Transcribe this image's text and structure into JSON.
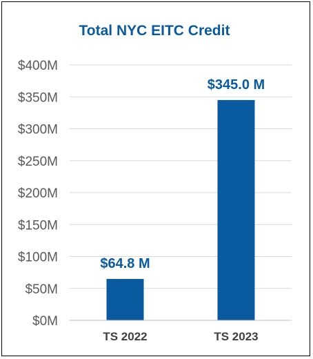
{
  "chart_data": {
    "type": "bar",
    "title": "Total NYC EITC Credit",
    "categories": [
      "TS 2022",
      "TS 2023"
    ],
    "values": [
      64.8,
      345.0
    ],
    "data_labels": [
      "$64.8 M",
      "$345.0 M"
    ],
    "y_tick_labels": [
      "$0M",
      "$50M",
      "$100M",
      "$150M",
      "$200M",
      "$250M",
      "$300M",
      "$350M",
      "$400M"
    ],
    "y_ticks": [
      0,
      50,
      100,
      150,
      200,
      250,
      300,
      350,
      400
    ],
    "ylim": [
      0,
      400
    ],
    "y_unit": "millions USD",
    "grid": true,
    "legend": "none",
    "colors": {
      "bar": "#0a5aa0",
      "title": "#0a5aa0",
      "data_label": "#0a5aa0",
      "grid": "#d9d9d9",
      "tick_text": "#595959",
      "category_text": "#404040",
      "axis": "#bfbfbf",
      "border": "#000000"
    }
  }
}
